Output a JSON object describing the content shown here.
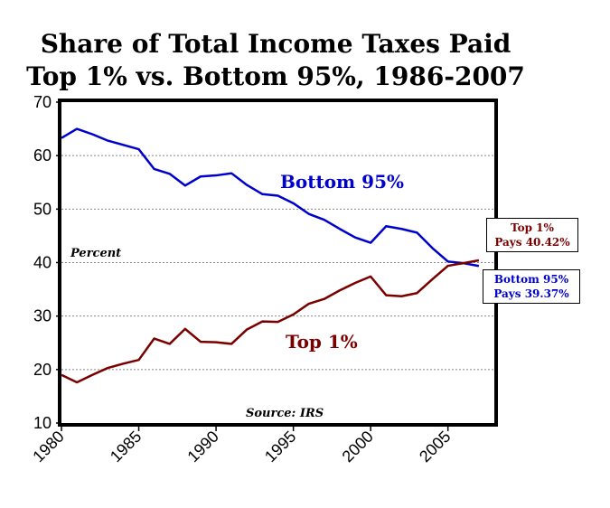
{
  "chart_data": {
    "type": "line",
    "title_line1": "Share of Total Income Taxes Paid",
    "title_line2": "Top 1% vs. Bottom 95%, 1986-2007",
    "ylabel": "Percent",
    "source": "Source: IRS",
    "ylim": [
      10,
      70
    ],
    "xlim": [
      1980,
      2008
    ],
    "yticks": [
      10,
      20,
      30,
      40,
      50,
      60,
      70
    ],
    "xticks": [
      1980,
      1985,
      1990,
      1995,
      2000,
      2005
    ],
    "grid": true,
    "x": [
      1980,
      1981,
      1982,
      1983,
      1984,
      1985,
      1986,
      1987,
      1988,
      1989,
      1990,
      1991,
      1992,
      1993,
      1994,
      1995,
      1996,
      1997,
      1998,
      1999,
      2000,
      2001,
      2002,
      2003,
      2004,
      2005,
      2006,
      2007
    ],
    "series": [
      {
        "name": "Bottom 95%",
        "color": "#0000cc",
        "values": [
          63.3,
          65.0,
          64.0,
          62.8,
          62.0,
          61.2,
          57.5,
          56.6,
          54.4,
          56.1,
          56.3,
          56.7,
          54.5,
          52.8,
          52.5,
          51.1,
          49.1,
          48.0,
          46.3,
          44.7,
          43.7,
          46.8,
          46.3,
          45.6,
          42.7,
          40.2,
          39.9,
          39.37
        ]
      },
      {
        "name": "Top 1%",
        "color": "#7a0000",
        "values": [
          19.0,
          17.6,
          19.0,
          20.3,
          21.1,
          21.8,
          25.8,
          24.8,
          27.6,
          25.2,
          25.1,
          24.8,
          27.5,
          29.0,
          28.9,
          30.3,
          32.3,
          33.2,
          34.8,
          36.2,
          37.4,
          33.9,
          33.7,
          34.3,
          36.9,
          39.4,
          39.9,
          40.42
        ]
      }
    ],
    "callouts": [
      {
        "line1": "Top 1%",
        "line2": "Pays 40.42%",
        "color": "#7a0000"
      },
      {
        "line1": "Bottom 95%",
        "line2": "Pays 39.37%",
        "color": "#0000cc"
      }
    ]
  }
}
